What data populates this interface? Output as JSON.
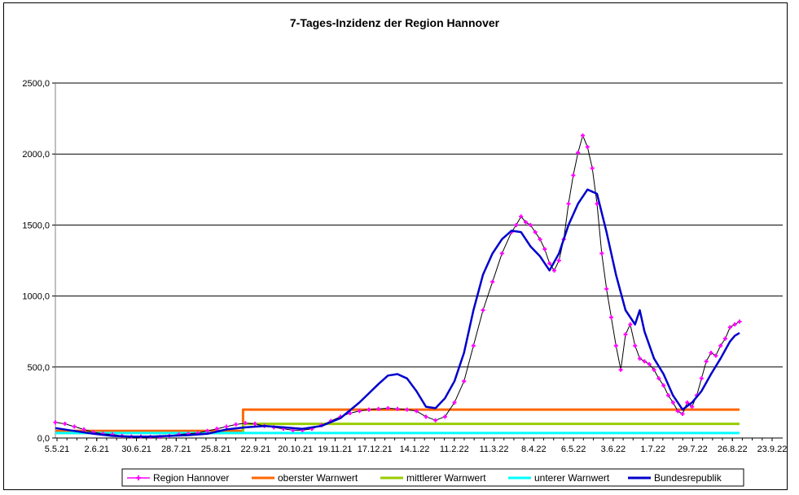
{
  "chart_data": {
    "type": "line",
    "title": "7-Tages-Inzidenz der Region Hannover",
    "xlabel": "",
    "ylabel": "",
    "ylim": [
      0,
      2500
    ],
    "y_ticks": [
      "0,0",
      "500,0",
      "1000,0",
      "1500,0",
      "2000,0",
      "2500,0"
    ],
    "x_tick_labels": [
      "5.5.21",
      "2.6.21",
      "30.6.21",
      "28.7.21",
      "25.8.21",
      "22.9.21",
      "20.10.21",
      "19.11.21",
      "17.12.21",
      "14.1.22",
      "11.2.22",
      "11.3.22",
      "8.4.22",
      "6.5.22",
      "3.6.22",
      "1.7.22",
      "29.7.22",
      "26.8.22",
      "23.9.22"
    ],
    "x_index_range": [
      0,
      144
    ],
    "grid": "horizontal",
    "legend_position": "bottom",
    "series": [
      {
        "name": "Region Hannover",
        "color": "#FF00FF",
        "style": "line-with-markers",
        "points": [
          [
            0,
            110
          ],
          [
            2,
            100
          ],
          [
            4,
            80
          ],
          [
            6,
            60
          ],
          [
            8,
            40
          ],
          [
            10,
            30
          ],
          [
            12,
            25
          ],
          [
            14,
            15
          ],
          [
            16,
            10
          ],
          [
            18,
            10
          ],
          [
            20,
            8
          ],
          [
            22,
            7
          ],
          [
            24,
            15
          ],
          [
            26,
            25
          ],
          [
            28,
            30
          ],
          [
            30,
            35
          ],
          [
            32,
            50
          ],
          [
            34,
            65
          ],
          [
            36,
            80
          ],
          [
            38,
            95
          ],
          [
            40,
            105
          ],
          [
            42,
            100
          ],
          [
            44,
            85
          ],
          [
            46,
            75
          ],
          [
            48,
            65
          ],
          [
            50,
            55
          ],
          [
            52,
            55
          ],
          [
            54,
            65
          ],
          [
            56,
            90
          ],
          [
            58,
            120
          ],
          [
            60,
            150
          ],
          [
            62,
            175
          ],
          [
            64,
            190
          ],
          [
            66,
            200
          ],
          [
            68,
            205
          ],
          [
            70,
            210
          ],
          [
            72,
            205
          ],
          [
            74,
            200
          ],
          [
            76,
            190
          ],
          [
            78,
            150
          ],
          [
            80,
            125
          ],
          [
            82,
            150
          ],
          [
            84,
            250
          ],
          [
            86,
            400
          ],
          [
            88,
            650
          ],
          [
            90,
            900
          ],
          [
            92,
            1100
          ],
          [
            94,
            1300
          ],
          [
            96,
            1450
          ],
          [
            97,
            1500
          ],
          [
            98,
            1560
          ],
          [
            99,
            1520
          ],
          [
            100,
            1500
          ],
          [
            101,
            1450
          ],
          [
            102,
            1400
          ],
          [
            103,
            1330
          ],
          [
            104,
            1230
          ],
          [
            105,
            1180
          ],
          [
            106,
            1250
          ],
          [
            107,
            1400
          ],
          [
            108,
            1650
          ],
          [
            109,
            1850
          ],
          [
            110,
            2010
          ],
          [
            111,
            2130
          ],
          [
            112,
            2050
          ],
          [
            113,
            1900
          ],
          [
            114,
            1650
          ],
          [
            115,
            1300
          ],
          [
            116,
            1050
          ],
          [
            117,
            850
          ],
          [
            118,
            650
          ],
          [
            119,
            480
          ],
          [
            120,
            730
          ],
          [
            121,
            800
          ],
          [
            122,
            650
          ],
          [
            123,
            560
          ],
          [
            124,
            540
          ],
          [
            125,
            520
          ],
          [
            126,
            480
          ],
          [
            127,
            420
          ],
          [
            128,
            370
          ],
          [
            129,
            300
          ],
          [
            130,
            250
          ],
          [
            131,
            190
          ],
          [
            132,
            170
          ],
          [
            133,
            250
          ],
          [
            134,
            220
          ],
          [
            135,
            300
          ],
          [
            136,
            420
          ],
          [
            137,
            540
          ],
          [
            138,
            600
          ],
          [
            139,
            580
          ],
          [
            140,
            650
          ],
          [
            141,
            700
          ],
          [
            142,
            780
          ],
          [
            143,
            800
          ],
          [
            144,
            820
          ]
        ]
      },
      {
        "name": "oberster Warnwert",
        "color": "#FF6600",
        "style": "step",
        "points": [
          [
            0,
            50
          ],
          [
            39.5,
            50
          ],
          [
            39.5,
            200
          ],
          [
            144,
            200
          ]
        ]
      },
      {
        "name": "mittlerer Warnwert",
        "color": "#99CC00",
        "style": "step",
        "points": [
          [
            0,
            35
          ],
          [
            39.5,
            35
          ],
          [
            39.5,
            100
          ],
          [
            144,
            100
          ]
        ]
      },
      {
        "name": "unterer Warnwert",
        "color": "#00FFFF",
        "style": "step",
        "points": [
          [
            0,
            35
          ],
          [
            144,
            35
          ]
        ]
      },
      {
        "name": "Bundesrepublik",
        "color": "#0000CC",
        "style": "line",
        "points": [
          [
            0,
            70
          ],
          [
            4,
            50
          ],
          [
            8,
            30
          ],
          [
            12,
            15
          ],
          [
            16,
            10
          ],
          [
            20,
            10
          ],
          [
            24,
            15
          ],
          [
            28,
            20
          ],
          [
            32,
            30
          ],
          [
            36,
            60
          ],
          [
            40,
            75
          ],
          [
            44,
            85
          ],
          [
            48,
            75
          ],
          [
            52,
            65
          ],
          [
            56,
            85
          ],
          [
            60,
            140
          ],
          [
            64,
            250
          ],
          [
            68,
            380
          ],
          [
            70,
            440
          ],
          [
            72,
            450
          ],
          [
            74,
            420
          ],
          [
            76,
            330
          ],
          [
            78,
            220
          ],
          [
            80,
            210
          ],
          [
            82,
            280
          ],
          [
            84,
            400
          ],
          [
            86,
            600
          ],
          [
            88,
            900
          ],
          [
            90,
            1150
          ],
          [
            92,
            1300
          ],
          [
            94,
            1400
          ],
          [
            96,
            1460
          ],
          [
            98,
            1450
          ],
          [
            100,
            1350
          ],
          [
            102,
            1280
          ],
          [
            104,
            1180
          ],
          [
            106,
            1300
          ],
          [
            108,
            1500
          ],
          [
            110,
            1650
          ],
          [
            112,
            1750
          ],
          [
            114,
            1720
          ],
          [
            116,
            1450
          ],
          [
            118,
            1150
          ],
          [
            120,
            900
          ],
          [
            122,
            800
          ],
          [
            123,
            900
          ],
          [
            124,
            750
          ],
          [
            126,
            560
          ],
          [
            128,
            450
          ],
          [
            130,
            300
          ],
          [
            132,
            200
          ],
          [
            134,
            250
          ],
          [
            136,
            330
          ],
          [
            138,
            450
          ],
          [
            140,
            560
          ],
          [
            142,
            680
          ],
          [
            143,
            720
          ],
          [
            144,
            740
          ]
        ]
      }
    ]
  }
}
